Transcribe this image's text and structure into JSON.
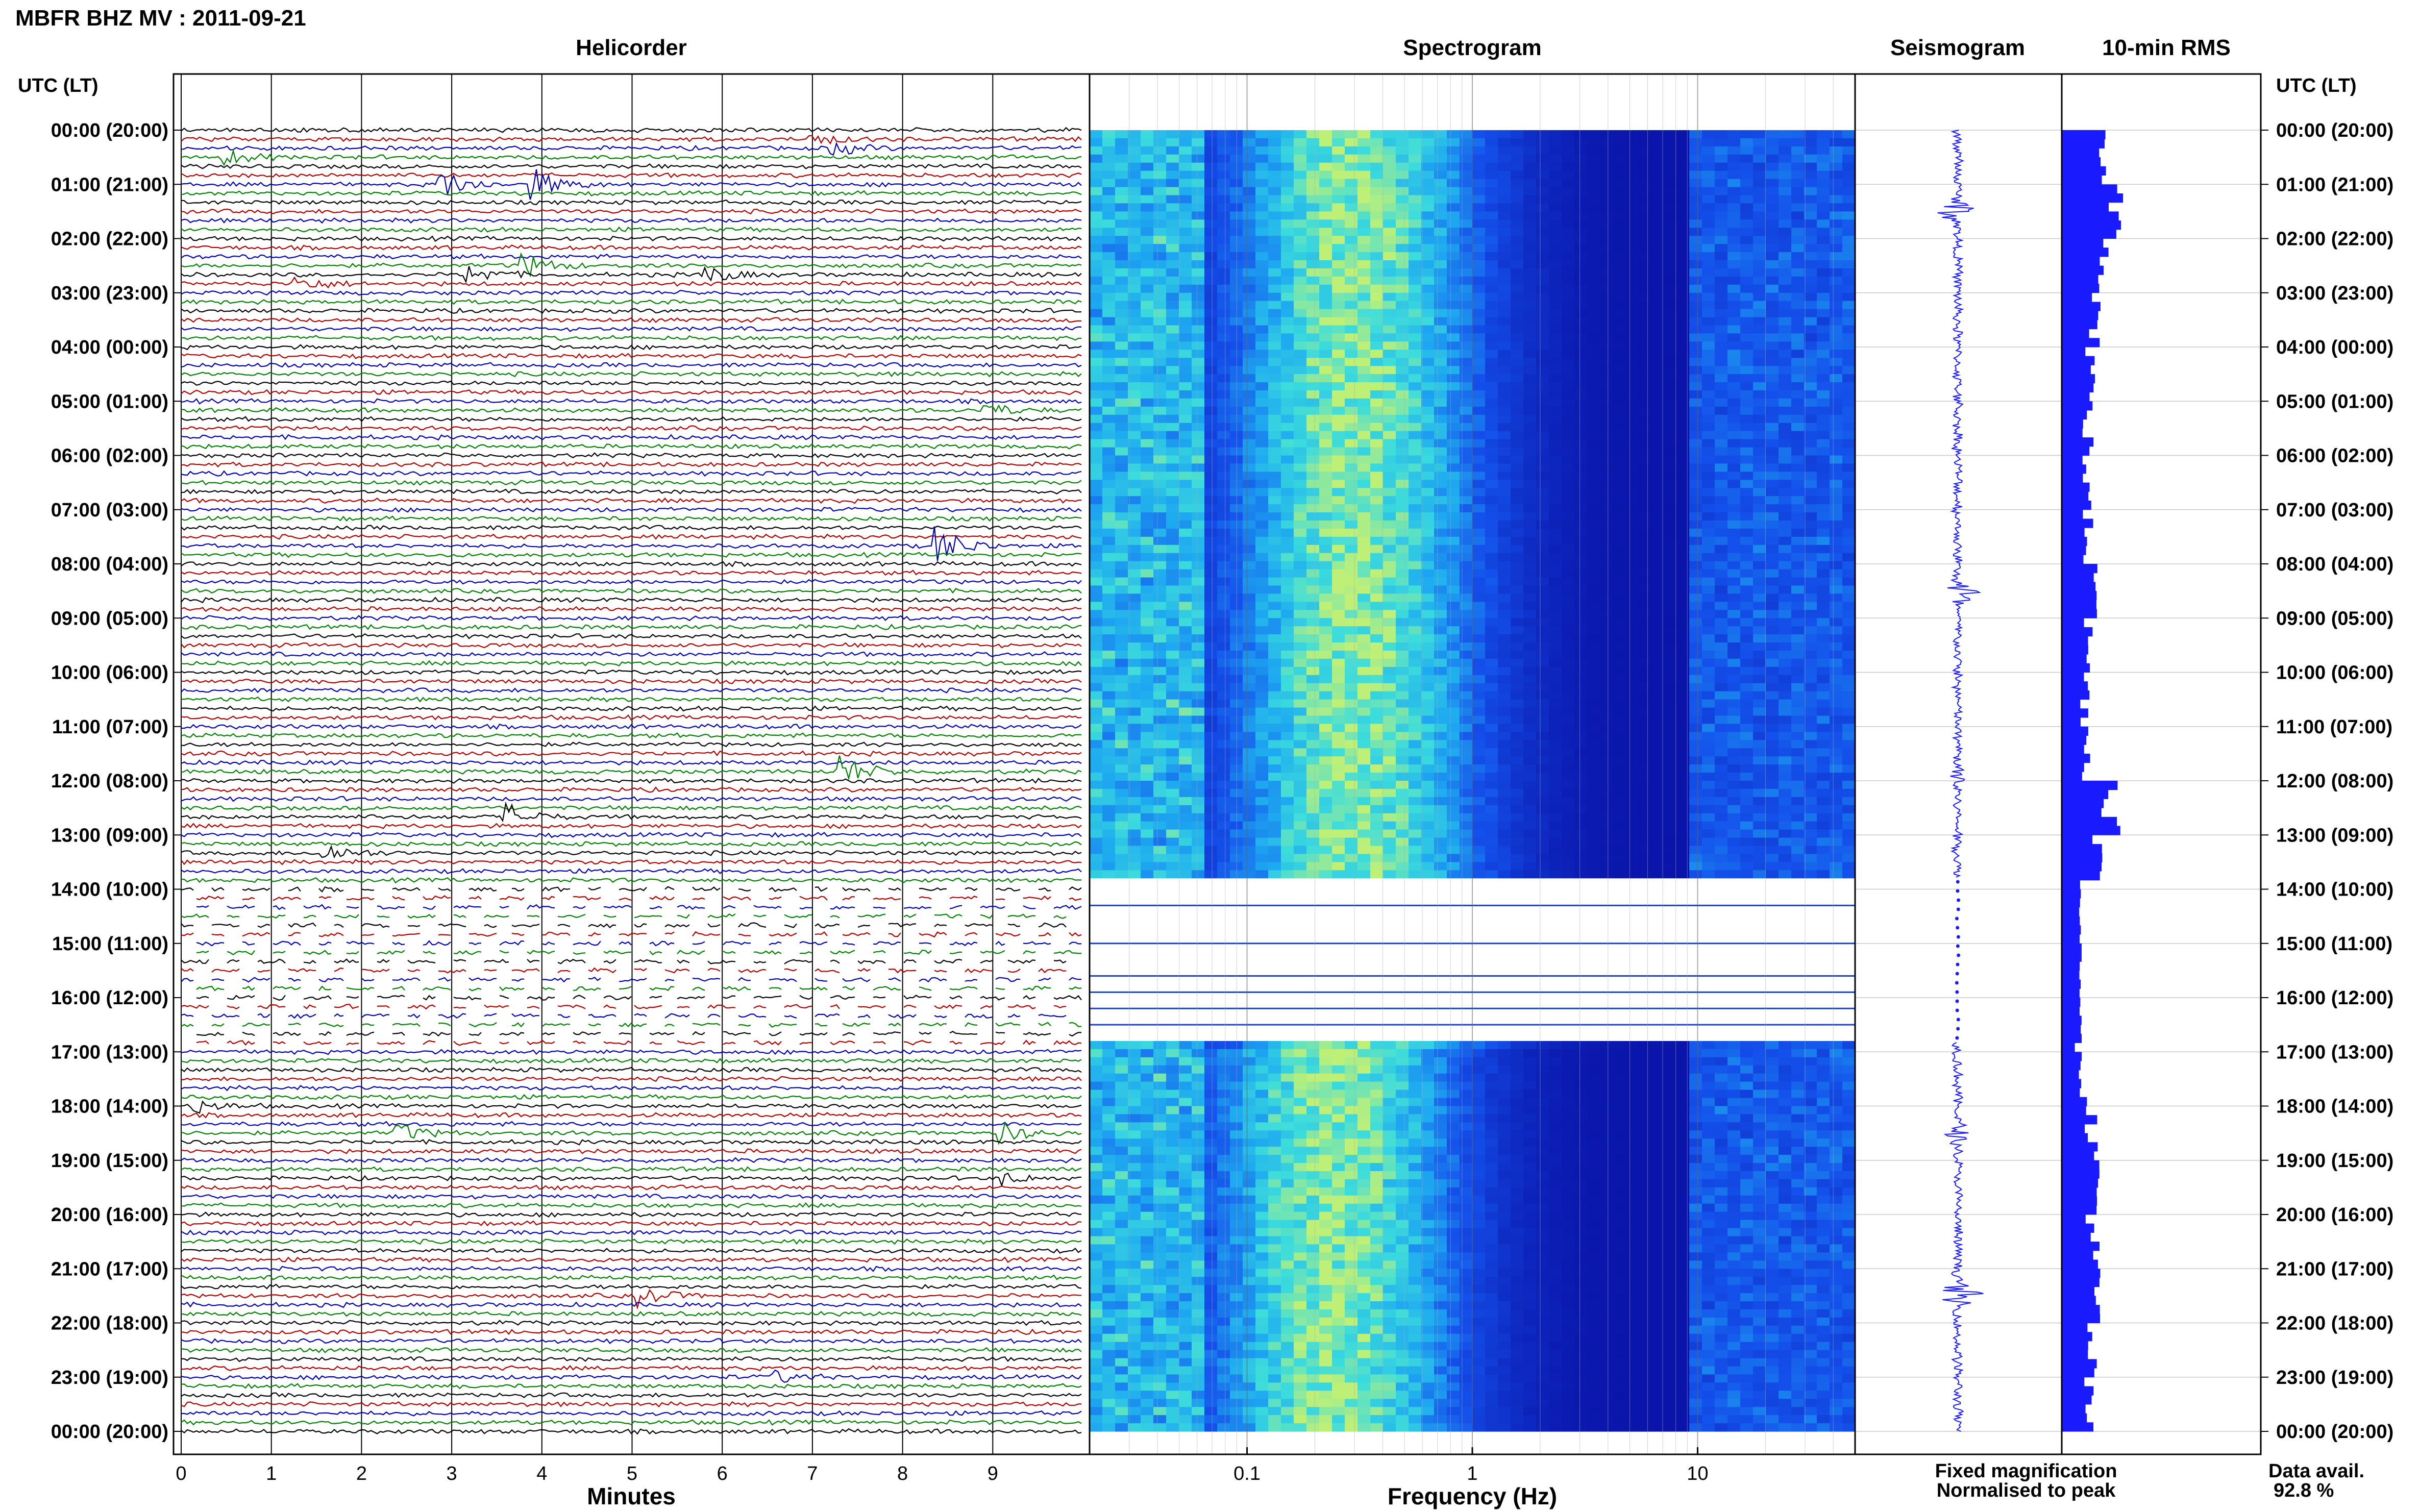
{
  "header": {
    "station_title": "MBFR BHZ MV : 2011-09-21"
  },
  "panels": {
    "helicorder": {
      "title": "Helicorder",
      "xlabel": "Minutes"
    },
    "spectrogram": {
      "title": "Spectrogram",
      "xlabel": "Frequency (Hz)"
    },
    "seismogram": {
      "title": "Seismogram"
    },
    "rms": {
      "title": "10-min RMS"
    }
  },
  "axis": {
    "left_header": "UTC (LT)",
    "right_header": "UTC (LT)"
  },
  "legend": {
    "fixed": "Fixed magnification",
    "normalised": "Normalised to peak",
    "fixed_color": "#1a1aff",
    "normalised_color": "#ff1a1a"
  },
  "availability": {
    "label": "Data avail.",
    "value": "92.8 %"
  },
  "colors": {
    "trace_cycle": [
      "#000000",
      "#b00000",
      "#0000b0",
      "#008000"
    ],
    "seismogram": "#1a1aff",
    "rms": "#1a1aff"
  },
  "chart_data": [
    {
      "type": "line",
      "title": "Helicorder",
      "xlabel": "Minutes",
      "x_ticks": [
        "0",
        "1",
        "2",
        "3",
        "4",
        "5",
        "6",
        "7",
        "8",
        "9"
      ],
      "xlim": [
        0,
        10
      ],
      "rows": 145,
      "row_minutes": 10,
      "time_labels": [
        "00:00 (20:00)",
        "01:00 (21:00)",
        "02:00 (22:00)",
        "03:00 (23:00)",
        "04:00 (00:00)",
        "05:00 (01:00)",
        "06:00 (02:00)",
        "07:00 (03:00)",
        "08:00 (04:00)",
        "09:00 (05:00)",
        "10:00 (06:00)",
        "11:00 (07:00)",
        "12:00 (08:00)",
        "13:00 (09:00)",
        "14:00 (10:00)",
        "15:00 (11:00)",
        "16:00 (12:00)",
        "17:00 (13:00)",
        "18:00 (14:00)",
        "19:00 (15:00)",
        "20:00 (16:00)",
        "21:00 (17:00)",
        "22:00 (18:00)",
        "23:00 (19:00)",
        "00:00 (20:00)"
      ],
      "gap_hours": [
        14.0,
        17.0
      ],
      "events": [
        {
          "row": 1,
          "minute": 7.0,
          "amp": 0.3
        },
        {
          "row": 2,
          "minute": 7.2,
          "amp": 0.4
        },
        {
          "row": 3,
          "minute": 0.5,
          "amp": 0.4
        },
        {
          "row": 6,
          "minute": 3.9,
          "amp": 0.8
        },
        {
          "row": 6,
          "minute": 2.9,
          "amp": 0.7
        },
        {
          "row": 15,
          "minute": 3.8,
          "amp": 0.6
        },
        {
          "row": 16,
          "minute": 3.2,
          "amp": 0.5
        },
        {
          "row": 16,
          "minute": 5.8,
          "amp": 0.5
        },
        {
          "row": 17,
          "minute": 1.3,
          "amp": 0.4
        },
        {
          "row": 31,
          "minute": 8.9,
          "amp": 0.4
        },
        {
          "row": 46,
          "minute": 8.4,
          "amp": 1.0
        },
        {
          "row": 71,
          "minute": 7.3,
          "amp": 0.9
        },
        {
          "row": 76,
          "minute": 3.6,
          "amp": 0.7
        },
        {
          "row": 80,
          "minute": 1.6,
          "amp": 0.5
        },
        {
          "row": 108,
          "minute": 0.1,
          "amp": 0.4
        },
        {
          "row": 111,
          "minute": 2.4,
          "amp": 0.5
        },
        {
          "row": 111,
          "minute": 9.1,
          "amp": 0.5
        },
        {
          "row": 116,
          "minute": 9.1,
          "amp": 0.3
        },
        {
          "row": 129,
          "minute": 5.1,
          "amp": 0.5
        },
        {
          "row": 138,
          "minute": 6.6,
          "amp": 0.3
        }
      ]
    },
    {
      "type": "heatmap",
      "title": "Spectrogram",
      "xlabel": "Frequency (Hz)",
      "x_scale": "log",
      "xlim": [
        0.02,
        50
      ],
      "x_ticks": [
        "0.1",
        "1",
        "10"
      ],
      "gap_hours": [
        13.8,
        16.8
      ],
      "peak_frequency_hz": 0.3
    },
    {
      "type": "line",
      "title": "Seismogram",
      "gap_hours": [
        13.8,
        16.8
      ],
      "bursts": [
        {
          "hour": 1.5,
          "amp": 0.6
        },
        {
          "hour": 12.0,
          "amp": 0.4
        },
        {
          "hour": 8.5,
          "amp": 0.9
        },
        {
          "hour": 18.5,
          "amp": 0.3
        },
        {
          "hour": 21.5,
          "amp": 0.8
        }
      ]
    },
    {
      "type": "bar",
      "title": "10-min RMS",
      "orientation": "horizontal",
      "gap_hours": [
        13.8,
        16.8
      ],
      "hourly_rms": [
        0.42,
        0.65,
        0.55,
        0.4,
        0.34,
        0.3,
        0.28,
        0.3,
        0.45,
        0.3,
        0.28,
        0.3,
        0.6,
        0.4,
        0.2,
        0.2,
        0.2,
        0.25,
        0.35,
        0.4,
        0.36,
        0.38,
        0.33,
        0.3
      ]
    }
  ]
}
